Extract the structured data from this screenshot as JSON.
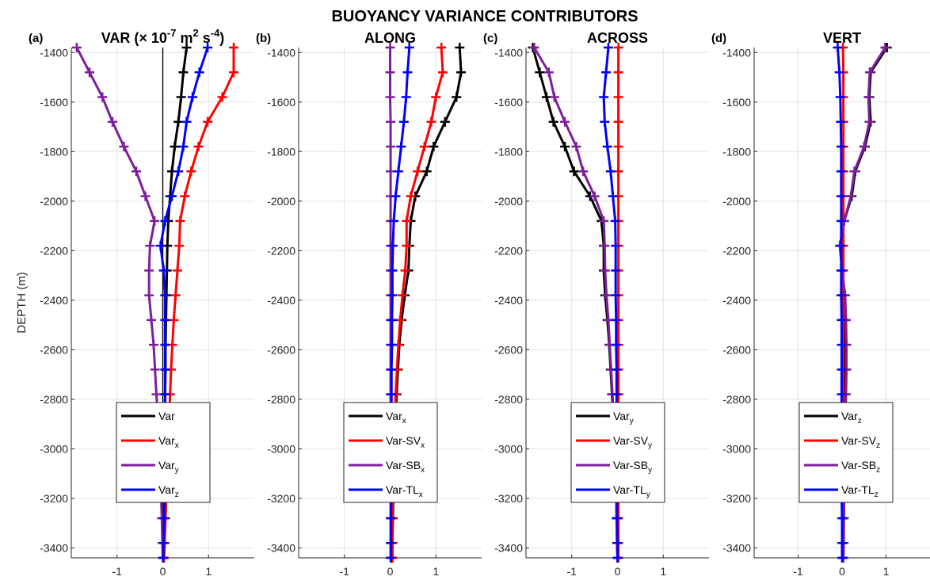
{
  "title": "BUOYANCY VARIANCE CONTRIBUTORS",
  "ylabel": "DEPTH (m)",
  "colors": {
    "black": "#000000",
    "red": "#ff0000",
    "purple": "#7e1e9c",
    "blue": "#0000ff"
  },
  "chart_data": [
    {
      "type": "line",
      "letter": "(a)",
      "title_parts": [
        "VAR (× 10",
        "-7",
        " m",
        "2",
        " s",
        "-4",
        ")"
      ],
      "xlim": [
        -2,
        2
      ],
      "xticks": [
        -1,
        0,
        1
      ],
      "ylim": [
        -3440,
        -1380
      ],
      "yticks": [
        -3400,
        -3200,
        -3000,
        -2800,
        -2600,
        -2400,
        -2200,
        -2000,
        -1800,
        -1600,
        -1400
      ],
      "zero_line": true,
      "y": [
        -1380,
        -1480,
        -1580,
        -1680,
        -1780,
        -1880,
        -1980,
        -2080,
        -2180,
        -2280,
        -2380,
        -2480,
        -2580,
        -2680,
        -2780,
        -2880,
        -2980,
        -3080,
        -3180,
        -3280,
        -3380,
        -3440
      ],
      "series": [
        {
          "name": "Var",
          "sub": "",
          "color": "black",
          "values": [
            0.52,
            0.45,
            0.4,
            0.34,
            0.26,
            0.2,
            0.16,
            0.12,
            0.1,
            0.09,
            0.08,
            0.07,
            0.06,
            0.06,
            0.05,
            0.05,
            0.04,
            0.04,
            0.03,
            0.03,
            0.02,
            0.02
          ]
        },
        {
          "name": "Var",
          "sub": "x",
          "color": "red",
          "values": [
            1.55,
            1.55,
            1.3,
            0.98,
            0.78,
            0.62,
            0.48,
            0.38,
            0.36,
            0.32,
            0.28,
            0.24,
            0.21,
            0.18,
            0.16,
            0.14,
            0.12,
            0.1,
            0.08,
            0.06,
            0.04,
            0.03
          ]
        },
        {
          "name": "Var",
          "sub": "y",
          "color": "purple",
          "values": [
            -1.88,
            -1.6,
            -1.32,
            -1.1,
            -0.85,
            -0.58,
            -0.38,
            -0.18,
            -0.28,
            -0.3,
            -0.3,
            -0.25,
            -0.2,
            -0.17,
            -0.14,
            -0.1,
            -0.08,
            -0.06,
            -0.04,
            -0.02,
            -0.01,
            0
          ]
        },
        {
          "name": "Var",
          "sub": "z",
          "color": "blue",
          "values": [
            0.98,
            0.8,
            0.65,
            0.52,
            0.45,
            0.34,
            0.2,
            0.05,
            -0.05,
            0.02,
            0.05,
            0.05,
            0.05,
            0.05,
            0.05,
            0.05,
            0.05,
            0.04,
            0.04,
            0.03,
            0.02,
            0.01
          ]
        }
      ]
    },
    {
      "type": "line",
      "letter": "(b)",
      "title_parts": [
        "ALONG"
      ],
      "xlim": [
        -2,
        2
      ],
      "xticks": [
        -1,
        0,
        1
      ],
      "ylim": [
        -3440,
        -1380
      ],
      "yticks": [
        -3400,
        -3200,
        -3000,
        -2800,
        -2600,
        -2400,
        -2200,
        -2000,
        -1800,
        -1600,
        -1400
      ],
      "zero_line": false,
      "y": [
        -1380,
        -1480,
        -1580,
        -1680,
        -1780,
        -1880,
        -1980,
        -2080,
        -2180,
        -2280,
        -2380,
        -2480,
        -2580,
        -2680,
        -2780,
        -2880,
        -2980,
        -3080,
        -3180,
        -3280,
        -3380,
        -3440
      ],
      "series": [
        {
          "name": "Var",
          "sub": "x",
          "color": "black",
          "values": [
            1.52,
            1.55,
            1.45,
            1.2,
            0.95,
            0.8,
            0.55,
            0.45,
            0.42,
            0.4,
            0.32,
            0.25,
            0.2,
            0.17,
            0.14,
            0.12,
            0.1,
            0.08,
            0.07,
            0.06,
            0.05,
            0.05
          ]
        },
        {
          "name": "Var-SV",
          "sub": "x",
          "color": "red",
          "values": [
            1.12,
            1.15,
            1.0,
            0.9,
            0.75,
            0.6,
            0.45,
            0.36,
            0.36,
            0.33,
            0.27,
            0.22,
            0.18,
            0.15,
            0.12,
            0.1,
            0.09,
            0.07,
            0.06,
            0.05,
            0.05,
            0.05
          ]
        },
        {
          "name": "Var-SB",
          "sub": "x",
          "color": "purple",
          "values": [
            0.0,
            0.0,
            0.0,
            0.01,
            0.01,
            0.01,
            0.01,
            0.01,
            0.01,
            0.01,
            0.01,
            0.01,
            0.01,
            0.01,
            0.01,
            0.01,
            0.01,
            0.01,
            0.01,
            0.01,
            0.01,
            0.01
          ]
        },
        {
          "name": "Var-TL",
          "sub": "x",
          "color": "blue",
          "values": [
            0.42,
            0.38,
            0.35,
            0.3,
            0.24,
            0.18,
            0.12,
            0.08,
            0.06,
            0.05,
            0.05,
            0.04,
            0.04,
            0.03,
            0.03,
            0.03,
            0.03,
            0.02,
            0.02,
            0.02,
            0.02,
            0.02
          ]
        }
      ]
    },
    {
      "type": "line",
      "letter": "(c)",
      "title_parts": [
        "ACROSS"
      ],
      "xlim": [
        -2,
        2
      ],
      "xticks": [
        -1,
        0,
        1
      ],
      "ylim": [
        -3440,
        -1380
      ],
      "yticks": [
        -3400,
        -3200,
        -3000,
        -2800,
        -2600,
        -2400,
        -2200,
        -2000,
        -1800,
        -1600,
        -1400
      ],
      "zero_line": false,
      "y": [
        -1380,
        -1480,
        -1580,
        -1680,
        -1780,
        -1880,
        -1980,
        -2080,
        -2180,
        -2280,
        -2380,
        -2480,
        -2580,
        -2680,
        -2780,
        -2880,
        -2980,
        -3080,
        -3180,
        -3280,
        -3380,
        -3440
      ],
      "series": [
        {
          "name": "Var",
          "sub": "y",
          "color": "black",
          "values": [
            -1.85,
            -1.7,
            -1.55,
            -1.4,
            -1.15,
            -0.95,
            -0.6,
            -0.35,
            -0.3,
            -0.3,
            -0.27,
            -0.22,
            -0.18,
            -0.15,
            -0.12,
            -0.09,
            -0.07,
            -0.05,
            -0.03,
            -0.02,
            -0.01,
            0.0
          ]
        },
        {
          "name": "Var-SV",
          "sub": "y",
          "color": "red",
          "values": [
            0.02,
            0.02,
            0.02,
            0.02,
            0.02,
            0.02,
            0.02,
            0.02,
            0.02,
            0.02,
            0.02,
            0.02,
            0.02,
            0.02,
            0.02,
            0.02,
            0.02,
            0.02,
            0.02,
            0.02,
            0.02,
            0.02
          ]
        },
        {
          "name": "Var-SB",
          "sub": "y",
          "color": "purple",
          "values": [
            -1.82,
            -1.5,
            -1.38,
            -1.15,
            -0.9,
            -0.75,
            -0.5,
            -0.3,
            -0.28,
            -0.27,
            -0.24,
            -0.2,
            -0.17,
            -0.14,
            -0.11,
            -0.08,
            -0.06,
            -0.04,
            -0.03,
            -0.02,
            -0.01,
            0.0
          ]
        },
        {
          "name": "Var-TL",
          "sub": "y",
          "color": "blue",
          "values": [
            -0.2,
            -0.25,
            -0.3,
            -0.28,
            -0.22,
            -0.15,
            -0.1,
            -0.05,
            -0.04,
            -0.04,
            -0.04,
            -0.03,
            -0.03,
            -0.02,
            -0.02,
            -0.02,
            -0.02,
            -0.01,
            -0.01,
            -0.01,
            0.0,
            0.0
          ]
        }
      ]
    },
    {
      "type": "line",
      "letter": "(d)",
      "title_parts": [
        "VERT"
      ],
      "xlim": [
        -2,
        2
      ],
      "xticks": [
        -1,
        0,
        1
      ],
      "ylim": [
        -3440,
        -1380
      ],
      "yticks": [
        -3400,
        -3200,
        -3000,
        -2800,
        -2600,
        -2400,
        -2200,
        -2000,
        -1800,
        -1600,
        -1400
      ],
      "zero_line": false,
      "y": [
        -1380,
        -1480,
        -1580,
        -1680,
        -1780,
        -1880,
        -1980,
        -2080,
        -2180,
        -2280,
        -2380,
        -2480,
        -2580,
        -2680,
        -2780,
        -2880,
        -2980,
        -3080,
        -3180,
        -3280,
        -3380,
        -3440
      ],
      "series": [
        {
          "name": "Var",
          "sub": "z",
          "color": "black",
          "values": [
            1.02,
            0.65,
            0.62,
            0.65,
            0.52,
            0.3,
            0.22,
            0.05,
            -0.05,
            0.0,
            0.06,
            0.08,
            0.08,
            0.08,
            0.07,
            0.07,
            0.06,
            0.05,
            0.05,
            0.04,
            0.03,
            0.03
          ]
        },
        {
          "name": "Var-SV",
          "sub": "z",
          "color": "red",
          "values": [
            0.02,
            0.03,
            0.03,
            0.03,
            0.03,
            0.03,
            0.03,
            0.03,
            0.03,
            0.03,
            0.03,
            0.03,
            0.03,
            0.03,
            0.03,
            0.03,
            0.03,
            0.03,
            0.03,
            0.03,
            0.03,
            0.03
          ]
        },
        {
          "name": "Var-SB",
          "sub": "z",
          "color": "purple",
          "values": [
            0.98,
            0.63,
            0.6,
            0.62,
            0.5,
            0.28,
            0.2,
            0.05,
            -0.05,
            0.0,
            0.07,
            0.09,
            0.1,
            0.1,
            0.09,
            0.08,
            0.07,
            0.06,
            0.05,
            0.04,
            0.04,
            0.03
          ]
        },
        {
          "name": "Var-TL",
          "sub": "z",
          "color": "blue",
          "values": [
            -0.1,
            -0.06,
            -0.04,
            -0.03,
            -0.02,
            -0.02,
            -0.02,
            -0.02,
            -0.02,
            -0.02,
            -0.02,
            -0.01,
            -0.01,
            -0.01,
            -0.01,
            -0.01,
            -0.01,
            -0.01,
            -0.01,
            0.0,
            0.0,
            0.0
          ]
        }
      ]
    }
  ]
}
